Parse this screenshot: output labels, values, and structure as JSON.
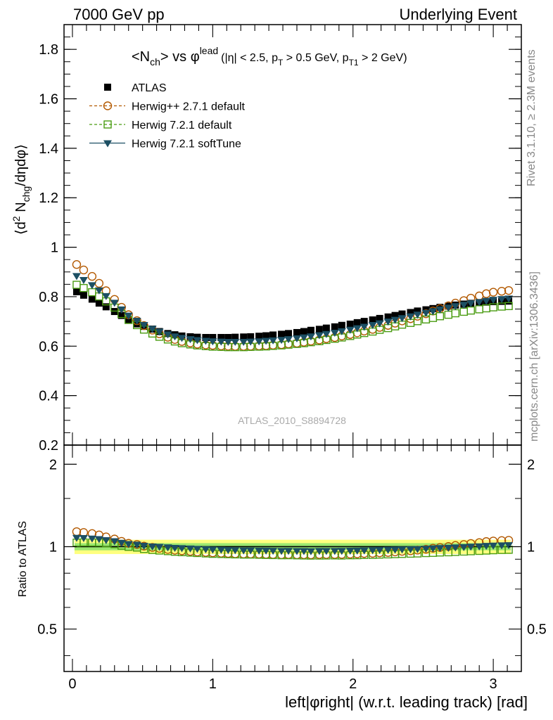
{
  "header": {
    "left": "7000 GeV pp",
    "right": "Underlying Event"
  },
  "side_labels": {
    "rivet": "Rivet 3.1.10, ≥ 2.3M events",
    "mcplots": "mcplots.cern.ch [arXiv:1306.3436]"
  },
  "watermark": "ATLAS_2010_S8894728",
  "title": {
    "main": "<N",
    "main_sub": "ch",
    "main_after": "> vs ",
    "phi": "φ",
    "phi_sup": "lead",
    "cond_a": "(|η| < 2.5, p",
    "cond_a_sub": "T",
    "cond_b": " > 0.5 GeV, p",
    "cond_b_sub": "T1",
    "cond_c": " > 2 GeV)"
  },
  "ylabel_main": {
    "a": "⟨d",
    "a_sup": "2",
    "b": " N",
    "b_sub": "chg",
    "c": "/dηdφ⟩"
  },
  "ylabel_ratio": "Ratio to ATLAS",
  "xlabel": "left|φright| (w.r.t. leading track) [rad]",
  "legend": [
    {
      "label": "ATLAS",
      "color": "#000000",
      "marker": "filled-square"
    },
    {
      "label": "Herwig++ 2.7.1 default",
      "color": "#b35900",
      "marker": "open-circle"
    },
    {
      "label": "Herwig 7.2.1 default",
      "color": "#4a9c12",
      "marker": "open-square"
    },
    {
      "label": "Herwig 7.2.1 softTune",
      "color": "#1c4f63",
      "marker": "filled-triangle-down"
    }
  ],
  "chart_data": {
    "type": "scatter",
    "xlim": [
      -0.06,
      3.2
    ],
    "ylim": [
      0.2,
      1.9
    ],
    "ratio_ylim_log": [
      0.35,
      2.35
    ],
    "x_ticks": [
      0,
      1,
      2,
      3
    ],
    "x_tick_labels": [
      "0",
      "1",
      "2",
      "3"
    ],
    "y_ticks": [
      0.2,
      0.4,
      0.6,
      0.8,
      1,
      1.2,
      1.4,
      1.6,
      1.8
    ],
    "y_tick_labels": [
      "0.2",
      "0.4",
      "0.6",
      "0.8",
      "1",
      "1.2",
      "1.4",
      "1.6",
      "1.8"
    ],
    "ratio_ticks": [
      0.5,
      1,
      2
    ],
    "ratio_tick_labels": [
      "0.5",
      "1",
      "2"
    ],
    "x": [
      0.03,
      0.08,
      0.14,
      0.19,
      0.24,
      0.3,
      0.35,
      0.4,
      0.46,
      0.51,
      0.57,
      0.62,
      0.68,
      0.73,
      0.78,
      0.84,
      0.89,
      0.95,
      1.0,
      1.06,
      1.11,
      1.16,
      1.22,
      1.27,
      1.33,
      1.38,
      1.43,
      1.49,
      1.54,
      1.6,
      1.65,
      1.7,
      1.76,
      1.81,
      1.87,
      1.92,
      1.98,
      2.03,
      2.08,
      2.14,
      2.19,
      2.25,
      2.3,
      2.35,
      2.41,
      2.46,
      2.52,
      2.57,
      2.62,
      2.68,
      2.73,
      2.79,
      2.84,
      2.9,
      2.95,
      3.0,
      3.06,
      3.11
    ],
    "series": [
      {
        "name": "ATLAS",
        "values": [
          0.82,
          0.806,
          0.79,
          0.774,
          0.759,
          0.74,
          0.724,
          0.707,
          0.69,
          0.68,
          0.669,
          0.659,
          0.651,
          0.646,
          0.641,
          0.638,
          0.636,
          0.635,
          0.635,
          0.635,
          0.635,
          0.636,
          0.637,
          0.638,
          0.64,
          0.642,
          0.645,
          0.648,
          0.651,
          0.655,
          0.659,
          0.664,
          0.668,
          0.673,
          0.678,
          0.684,
          0.689,
          0.695,
          0.7,
          0.706,
          0.712,
          0.718,
          0.724,
          0.73,
          0.736,
          0.742,
          0.747,
          0.752,
          0.757,
          0.762,
          0.766,
          0.77,
          0.773,
          0.776,
          0.778,
          0.78,
          0.781,
          0.782
        ]
      },
      {
        "name": "Herwig++ 2.7.1 default",
        "values": [
          0.93,
          0.908,
          0.882,
          0.854,
          0.824,
          0.789,
          0.757,
          0.727,
          0.703,
          0.683,
          0.665,
          0.65,
          0.636,
          0.627,
          0.619,
          0.613,
          0.608,
          0.605,
          0.603,
          0.601,
          0.6,
          0.599,
          0.599,
          0.6,
          0.601,
          0.602,
          0.604,
          0.606,
          0.609,
          0.612,
          0.616,
          0.62,
          0.625,
          0.63,
          0.635,
          0.641,
          0.647,
          0.654,
          0.661,
          0.668,
          0.676,
          0.684,
          0.693,
          0.702,
          0.711,
          0.721,
          0.731,
          0.742,
          0.752,
          0.763,
          0.774,
          0.784,
          0.794,
          0.803,
          0.812,
          0.818,
          0.822,
          0.825
        ]
      },
      {
        "name": "Herwig 7.2.1 default",
        "values": [
          0.848,
          0.835,
          0.818,
          0.801,
          0.781,
          0.756,
          0.73,
          0.706,
          0.685,
          0.667,
          0.651,
          0.638,
          0.627,
          0.619,
          0.612,
          0.607,
          0.603,
          0.6,
          0.598,
          0.597,
          0.596,
          0.596,
          0.596,
          0.597,
          0.598,
          0.599,
          0.601,
          0.603,
          0.606,
          0.609,
          0.612,
          0.616,
          0.62,
          0.625,
          0.63,
          0.635,
          0.641,
          0.647,
          0.653,
          0.659,
          0.666,
          0.673,
          0.68,
          0.687,
          0.694,
          0.701,
          0.708,
          0.714,
          0.721,
          0.727,
          0.733,
          0.739,
          0.744,
          0.749,
          0.753,
          0.757,
          0.76,
          0.762
        ]
      },
      {
        "name": "Herwig 7.2.1 softTune",
        "values": [
          0.884,
          0.868,
          0.847,
          0.826,
          0.803,
          0.776,
          0.749,
          0.724,
          0.703,
          0.686,
          0.671,
          0.659,
          0.648,
          0.64,
          0.634,
          0.629,
          0.625,
          0.622,
          0.62,
          0.619,
          0.618,
          0.618,
          0.618,
          0.619,
          0.62,
          0.622,
          0.624,
          0.626,
          0.629,
          0.632,
          0.636,
          0.64,
          0.645,
          0.65,
          0.655,
          0.661,
          0.667,
          0.673,
          0.679,
          0.686,
          0.693,
          0.7,
          0.707,
          0.714,
          0.721,
          0.728,
          0.735,
          0.742,
          0.749,
          0.756,
          0.762,
          0.768,
          0.774,
          0.779,
          0.784,
          0.788,
          0.791,
          0.793
        ]
      }
    ],
    "band_inner": 0.03,
    "band_outer": 0.06
  }
}
